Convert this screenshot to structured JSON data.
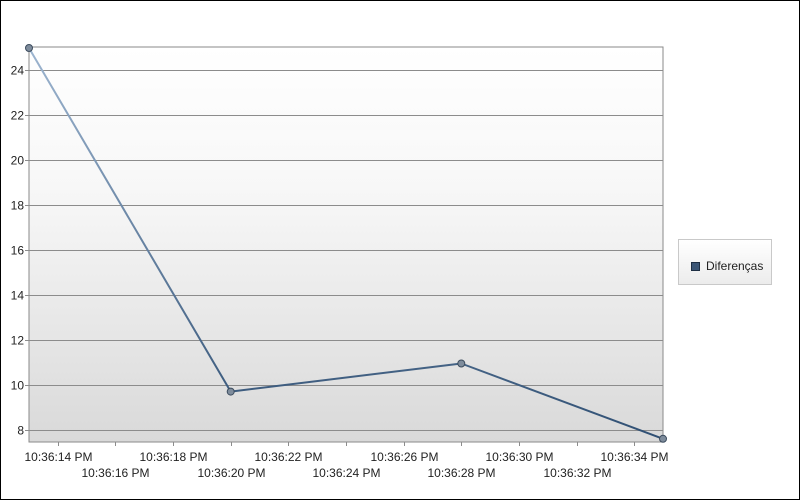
{
  "chart_data": {
    "type": "line",
    "series": [
      {
        "name": "Diferenças",
        "color": "#2f4f73",
        "points": [
          {
            "x": "10:36:13 PM",
            "y": 25.0
          },
          {
            "x": "10:36:20 PM",
            "y": 9.7
          },
          {
            "x": "10:36:28 PM",
            "y": 10.95
          },
          {
            "x": "10:36:35 PM",
            "y": 7.6
          }
        ]
      }
    ],
    "x_ticks": [
      "10:36:14 PM",
      "10:36:16 PM",
      "10:36:18 PM",
      "10:36:20 PM",
      "10:36:22 PM",
      "10:36:24 PM",
      "10:36:26 PM",
      "10:36:28 PM",
      "10:36:30 PM",
      "10:36:32 PM",
      "10:36:34 PM"
    ],
    "y_ticks": [
      8,
      10,
      12,
      14,
      16,
      18,
      20,
      22,
      24
    ],
    "xlim": [
      "10:36:13 PM",
      "10:36:35 PM"
    ],
    "ylim": [
      7.5,
      25.0
    ],
    "grid": "horizontal",
    "legend_position": "right",
    "title": "",
    "xlabel": "",
    "ylabel": ""
  }
}
